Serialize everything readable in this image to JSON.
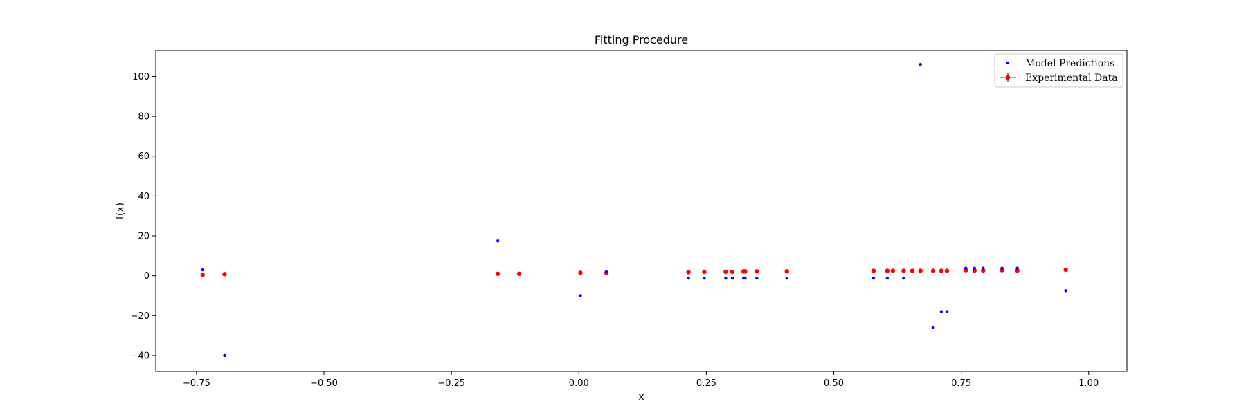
{
  "chart_data": {
    "type": "scatter",
    "title": "Fitting Procedure",
    "xlabel": "x",
    "ylabel": "f(x)",
    "xlim": [
      -0.83,
      1.075
    ],
    "ylim": [
      -48,
      113
    ],
    "xticks": [
      -0.75,
      -0.5,
      -0.25,
      0.0,
      0.25,
      0.5,
      0.75,
      1.0
    ],
    "xtick_labels": [
      "−0.75",
      "−0.50",
      "−0.25",
      "0.00",
      "0.25",
      "0.50",
      "0.75",
      "1.00"
    ],
    "yticks": [
      -40,
      -20,
      0,
      20,
      40,
      60,
      80,
      100
    ],
    "ytick_labels": [
      "−40",
      "−20",
      "0",
      "20",
      "40",
      "60",
      "80",
      "100"
    ],
    "grid": false,
    "legend_position": "top-right",
    "series": [
      {
        "name": "Model Predictions",
        "color": "#0000ff",
        "marker": "point",
        "x": [
          -0.738,
          -0.695,
          -0.159,
          0.003,
          0.054,
          0.215,
          0.246,
          0.288,
          0.301,
          0.323,
          0.326,
          0.349,
          0.408,
          0.578,
          0.605,
          0.637,
          0.67,
          0.695,
          0.711,
          0.722,
          0.759,
          0.776,
          0.793,
          0.83,
          0.86,
          0.955
        ],
        "y": [
          3.0,
          -40.0,
          17.5,
          -10.0,
          2.0,
          -1.2,
          -1.2,
          -1.2,
          -1.2,
          -1.2,
          -1.2,
          -1.2,
          -1.2,
          -1.2,
          -1.2,
          -1.2,
          106.0,
          -26.0,
          -18.0,
          -18.0,
          3.8,
          3.8,
          3.8,
          3.8,
          3.8,
          -7.5
        ]
      },
      {
        "name": "Experimental Data",
        "color": "#ff0000",
        "marker": "circle-errorbar",
        "x": [
          -0.738,
          -0.695,
          -0.159,
          -0.117,
          0.003,
          0.054,
          0.215,
          0.246,
          0.288,
          0.301,
          0.323,
          0.326,
          0.349,
          0.408,
          0.578,
          0.605,
          0.616,
          0.637,
          0.654,
          0.67,
          0.695,
          0.711,
          0.722,
          0.759,
          0.776,
          0.793,
          0.83,
          0.86,
          0.955
        ],
        "y": [
          0.5,
          0.8,
          1.0,
          1.0,
          1.5,
          1.5,
          1.8,
          2.0,
          2.0,
          2.0,
          2.2,
          2.2,
          2.2,
          2.2,
          2.5,
          2.5,
          2.5,
          2.5,
          2.5,
          2.5,
          2.5,
          2.5,
          2.5,
          2.8,
          2.6,
          2.6,
          2.8,
          2.6,
          3.0
        ]
      }
    ]
  }
}
